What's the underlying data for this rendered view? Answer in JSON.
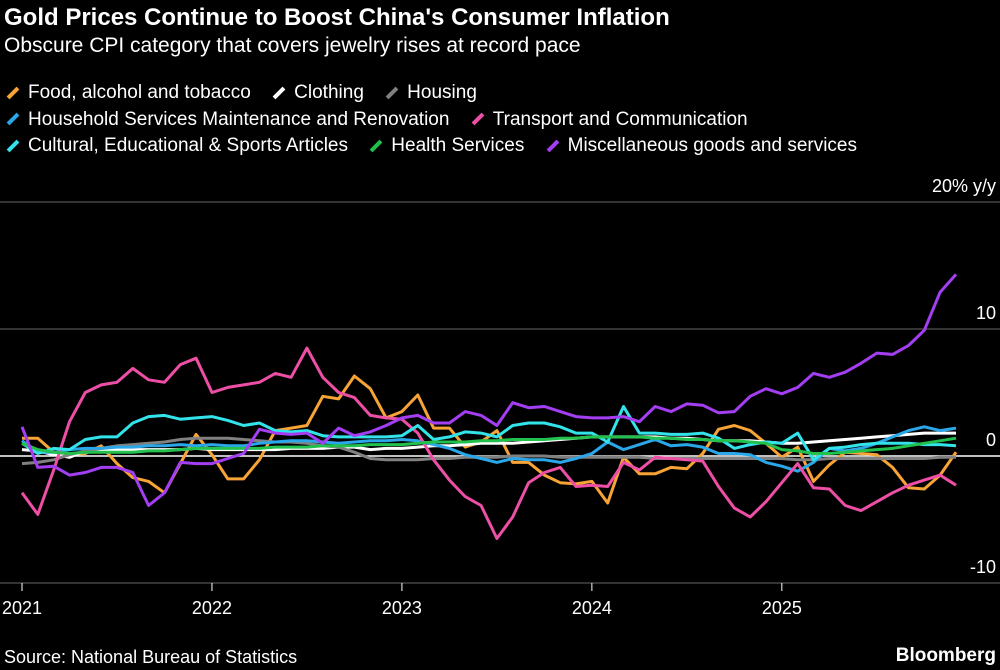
{
  "chart_data": {
    "type": "line",
    "title": "Gold Prices Continue to Boost China's Consumer Inflation",
    "subtitle": "Obscure CPI category that covers jewelry rises at record pace",
    "ylabel": "20% y/y",
    "unit_label": "y/y",
    "ylim": [
      -10,
      20
    ],
    "yticks": [
      {
        "value": 20,
        "label": "20% y/y"
      },
      {
        "value": 10,
        "label": "10"
      },
      {
        "value": 0,
        "label": "0"
      },
      {
        "value": -10,
        "label": "-10"
      }
    ],
    "x_start": "2021-01",
    "x_end": "2025-12",
    "frequency": "monthly",
    "xticks": [
      "2021",
      "2022",
      "2023",
      "2024",
      "2025"
    ],
    "grid": true,
    "legend_position": "top",
    "series": [
      {
        "name": "Food, alcohol and tobacco",
        "color": "#f7a336",
        "values": [
          1.4,
          1.4,
          0.3,
          0.1,
          0.2,
          0.8,
          -0.6,
          -1.7,
          -2,
          -2.9,
          -0.6,
          1.7,
          0.1,
          -1.8,
          -1.8,
          -0.3,
          2,
          2.2,
          2.4,
          4.7,
          4.5,
          6.3,
          5.3,
          3,
          3.5,
          4.8,
          2.2,
          2.2,
          0.7,
          1.1,
          2,
          -0.5,
          -0.5,
          -1.5,
          -2.1,
          -2.2,
          -2,
          -3.7,
          -0.1,
          -1.4,
          -1.4,
          -0.9,
          -1,
          0.2,
          2.1,
          2.4,
          2,
          1,
          -0.1,
          0.7,
          -2,
          -0.7,
          0.3,
          0.2,
          0.1,
          -0.9,
          -2.5,
          -2.6,
          -1.5,
          0.3
        ]
      },
      {
        "name": "Clothing",
        "color": "#ffffff",
        "values": [
          0.5,
          0.4,
          0.1,
          -0.1,
          0.4,
          0.5,
          0.5,
          0.5,
          0.5,
          0.5,
          0.5,
          0.6,
          0.5,
          0.5,
          0.5,
          0.5,
          0.5,
          0.6,
          0.6,
          0.6,
          0.7,
          0.7,
          0.5,
          0.6,
          0.6,
          0.7,
          0.8,
          0.8,
          0.9,
          1.0,
          1.0,
          1.0,
          1.1,
          1.2,
          1.3,
          1.4,
          1.5,
          1.5,
          1.5,
          1.5,
          1.5,
          1.4,
          1.4,
          1.3,
          1.2,
          1.2,
          1.2,
          1.1,
          1.0,
          1.0,
          1.1,
          1.2,
          1.3,
          1.4,
          1.5,
          1.6,
          1.7,
          1.8,
          1.8,
          1.8
        ]
      },
      {
        "name": "Housing",
        "color": "#808080",
        "values": [
          -0.6,
          -0.5,
          -0.3,
          0.1,
          0.4,
          0.6,
          0.8,
          0.9,
          1.0,
          1.1,
          1.3,
          1.4,
          1.4,
          1.4,
          1.3,
          1.2,
          1.1,
          1.1,
          1.0,
          0.8,
          0.7,
          0.3,
          -0.2,
          -0.3,
          -0.3,
          -0.3,
          -0.2,
          -0.2,
          -0.1,
          -0.1,
          -0.1,
          0,
          0,
          0,
          -0.1,
          -0.1,
          -0.1,
          -0.1,
          -0.1,
          -0.1,
          -0.2,
          -0.2,
          -0.2,
          -0.2,
          -0.2,
          -0.2,
          -0.2,
          -0.2,
          -0.2,
          -0.3,
          -0.3,
          -0.2,
          -0.2,
          -0.2,
          -0.2,
          -0.2,
          -0.2,
          -0.2,
          -0.1,
          -0.1
        ]
      },
      {
        "name": "Household Services Maintenance and Renovation",
        "color": "#2aa7e8",
        "values": [
          1.2,
          0.3,
          0.3,
          0.5,
          0.6,
          0.6,
          0.7,
          0.7,
          0.8,
          0.8,
          0.9,
          0.8,
          0.9,
          0.8,
          0.8,
          1.0,
          1.1,
          1.2,
          1.2,
          1.1,
          1.0,
          1.1,
          1.2,
          1.2,
          1.3,
          1.2,
          0.9,
          0.6,
          0.1,
          -0.2,
          -0.5,
          -0.2,
          -0.3,
          -0.3,
          -0.5,
          -0.2,
          0.2,
          1.1,
          0.5,
          0.9,
          1.3,
          0.8,
          0.9,
          0.7,
          0.2,
          0.2,
          0.1,
          -0.5,
          -0.8,
          -1.2,
          -0.5,
          0.6,
          0.4,
          0.6,
          1,
          1.5,
          2,
          2.3,
          2,
          2.2
        ]
      },
      {
        "name": "Transport and Communication",
        "color": "#ee4fa6",
        "values": [
          -2.9,
          -4.6,
          -1.1,
          2.7,
          5,
          5.6,
          5.8,
          6.9,
          6,
          5.8,
          7.2,
          7.7,
          5,
          5.4,
          5.6,
          5.8,
          6.5,
          6.2,
          8.5,
          6.2,
          5,
          4.6,
          3.2,
          3,
          2.9,
          1.8,
          -0.3,
          -1.9,
          -3.2,
          -3.9,
          -6.5,
          -4.8,
          -2.1,
          -1.3,
          -0.9,
          -2.4,
          -2.3,
          -2.4,
          -0.5,
          -1.1,
          -0.1,
          -0.2,
          -0.3,
          -0.4,
          -2.4,
          -4.1,
          -4.8,
          -3.6,
          -2.1,
          -0.6,
          -2.5,
          -2.6,
          -3.9,
          -4.3,
          -3.6,
          -2.9,
          -2.3,
          -1.9,
          -1.5,
          -2.3
        ]
      },
      {
        "name": "Cultural, Educational & Sports Articles",
        "color": "#33e3ea",
        "values": [
          1,
          0.2,
          0.6,
          0.5,
          1.3,
          1.5,
          1.5,
          2.6,
          3.1,
          3.2,
          2.9,
          3,
          3.1,
          2.8,
          2.4,
          2.6,
          2,
          1.9,
          2,
          1.6,
          1.5,
          1.5,
          1.5,
          1.5,
          1.6,
          2.4,
          1.3,
          1.5,
          1.9,
          1.8,
          1.5,
          2.4,
          2.6,
          2.6,
          2.3,
          1.8,
          1.8,
          1.1,
          3.9,
          1.8,
          1.8,
          1.7,
          1.7,
          1.8,
          1.4,
          0.6,
          0.9,
          1.1,
          1,
          1.8,
          -0.3,
          0.6,
          0.7,
          0.9,
          1,
          1,
          1,
          0.9,
          0.9,
          0.8
        ]
      },
      {
        "name": "Health Services",
        "color": "#22c04d",
        "values": [
          1.0,
          0.5,
          0.3,
          0.2,
          0.3,
          0.3,
          0.3,
          0.3,
          0.4,
          0.4,
          0.5,
          0.6,
          0.6,
          0.6,
          0.6,
          0.6,
          0.7,
          0.7,
          0.7,
          0.8,
          0.8,
          0.8,
          0.9,
          0.9,
          0.9,
          1.0,
          1.1,
          1.1,
          1.1,
          1.2,
          1.2,
          1.3,
          1.3,
          1.3,
          1.4,
          1.4,
          1.5,
          1.5,
          1.5,
          1.5,
          1.4,
          1.4,
          1.3,
          1.3,
          1.2,
          1.2,
          1.1,
          1.0,
          0.5,
          0.4,
          0.2,
          0.2,
          0.3,
          0.4,
          0.5,
          0.6,
          0.8,
          1.0,
          1.2,
          1.4
        ]
      },
      {
        "name": "Miscellaneous goods and services",
        "color": "#a33ef2",
        "values": [
          2.3,
          -0.9,
          -0.8,
          -1.5,
          -1.3,
          -0.9,
          -0.9,
          -1.3,
          -3.9,
          -2.9,
          -0.5,
          -0.6,
          -0.6,
          -0.2,
          0.2,
          2.1,
          1.8,
          1.7,
          1.8,
          1,
          2.2,
          1.6,
          1.9,
          2.4,
          3,
          3.2,
          2.6,
          2.6,
          3.5,
          3.2,
          2.4,
          4.2,
          3.8,
          3.9,
          3.5,
          3.1,
          3,
          3,
          3.1,
          2.7,
          3.9,
          3.5,
          4.1,
          4,
          3.4,
          3.5,
          4.7,
          5.3,
          4.9,
          5.4,
          6.5,
          6.2,
          6.6,
          7.3,
          8.1,
          8,
          8.7,
          9.9,
          12.9,
          14.3
        ]
      }
    ],
    "source": "Source: National Bureau of Statistics",
    "brand": "Bloomberg"
  }
}
